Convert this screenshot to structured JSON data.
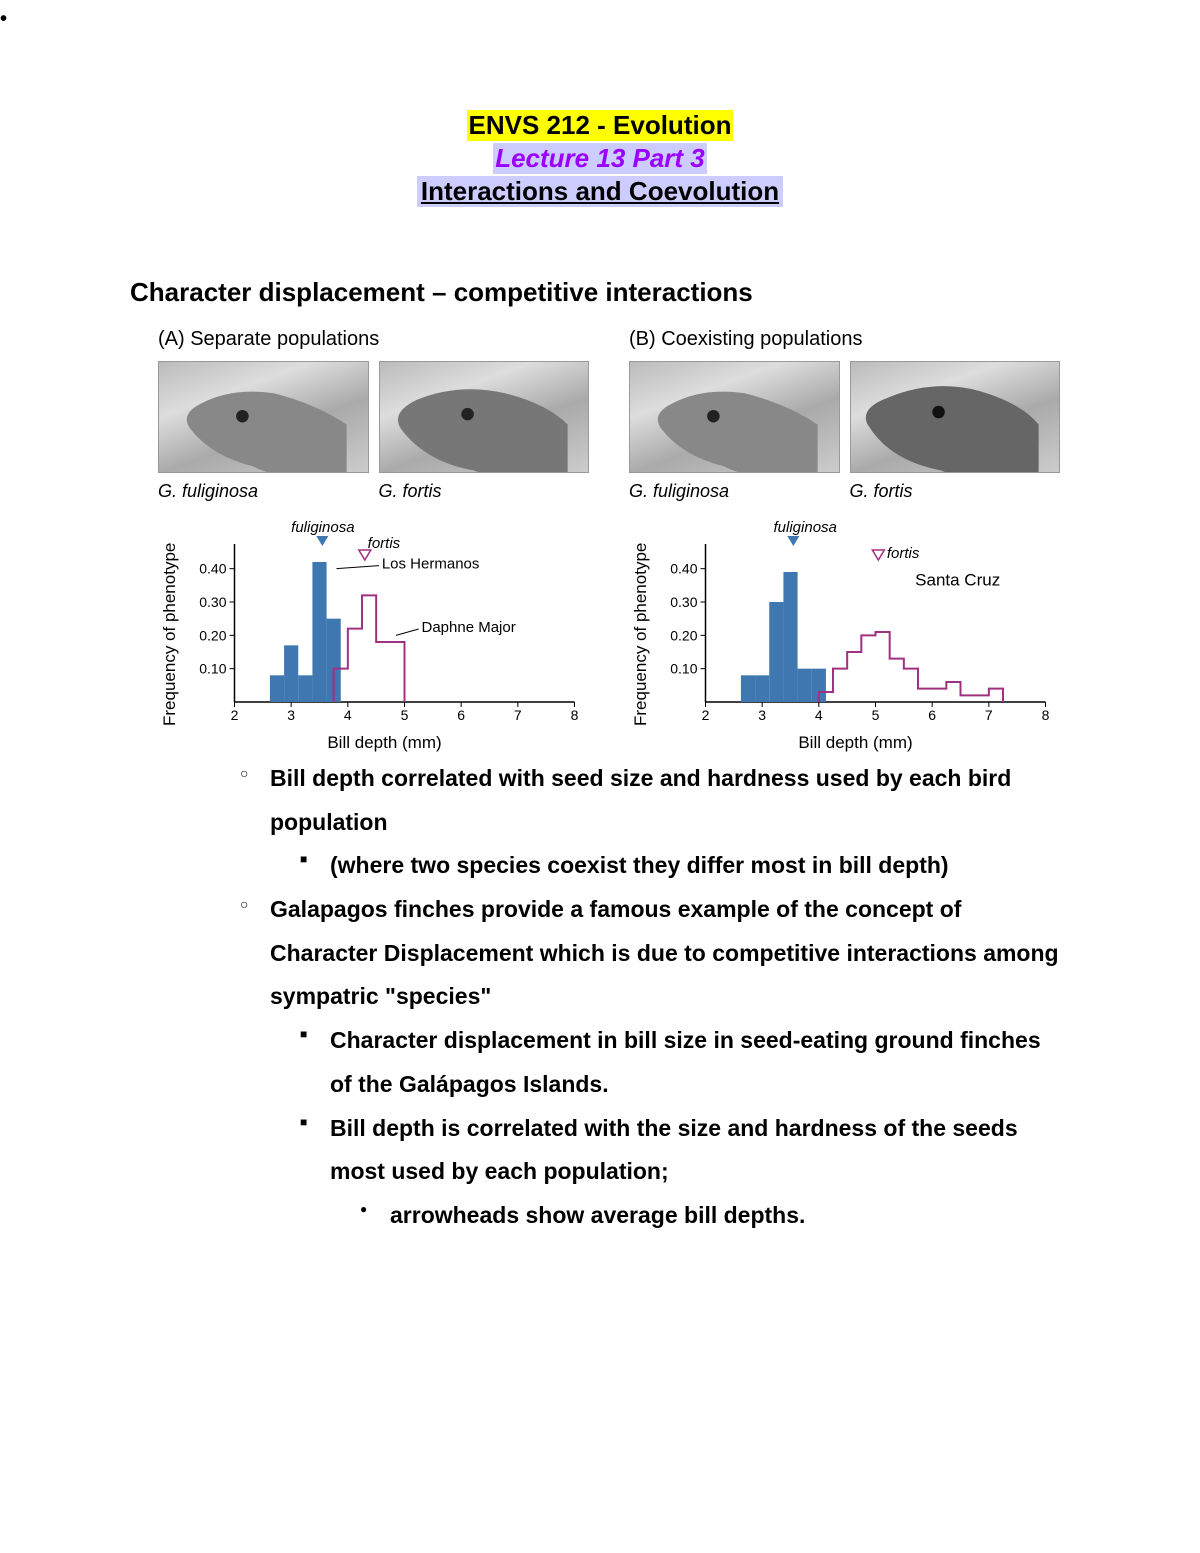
{
  "header": {
    "course": "ENVS 212 - Evolution",
    "lecture": "Lecture 13 Part 3",
    "subtitle": "Interactions and Coevolution",
    "colors": {
      "yellow": "#ffff00",
      "lavender": "#ccccff",
      "lecture_text": "#9900ff"
    }
  },
  "section_heading": "Character displacement – competitive interactions",
  "figure": {
    "panelA": {
      "title": "(A)  Separate populations",
      "species": [
        "G. fuliginosa",
        "G. fortis"
      ],
      "ylabel": "Frequency of phenotype",
      "xlabel": "Bill depth (mm)",
      "ylim": [
        0,
        0.45
      ],
      "yticks": [
        0.1,
        0.2,
        0.3,
        0.4
      ],
      "xlim": [
        2,
        8
      ],
      "xticks": [
        2,
        3,
        4,
        5,
        6,
        7,
        8
      ],
      "bar_color": "#3f77b0",
      "line_color": "#a03080",
      "axis_color": "#000000",
      "annotations": {
        "fuliginosa": "fuliginosa",
        "los_hermanos": "Los Hermanos",
        "fortis": "fortis",
        "daphne_major": "Daphne Major"
      },
      "fuliginosa_bars": [
        {
          "x": 2.75,
          "h": 0.08
        },
        {
          "x": 3.0,
          "h": 0.17
        },
        {
          "x": 3.25,
          "h": 0.08
        },
        {
          "x": 3.5,
          "h": 0.42
        },
        {
          "x": 3.75,
          "h": 0.25
        },
        {
          "x": 4.0,
          "h": 0.0
        }
      ],
      "fortis_line": [
        {
          "x": 3.75,
          "y": 0.0
        },
        {
          "x": 3.75,
          "y": 0.1
        },
        {
          "x": 4.0,
          "y": 0.1
        },
        {
          "x": 4.0,
          "y": 0.22
        },
        {
          "x": 4.25,
          "y": 0.22
        },
        {
          "x": 4.25,
          "y": 0.32
        },
        {
          "x": 4.5,
          "y": 0.32
        },
        {
          "x": 4.5,
          "y": 0.18
        },
        {
          "x": 4.75,
          "y": 0.18
        },
        {
          "x": 4.75,
          "y": 0.18
        },
        {
          "x": 5.0,
          "y": 0.18
        },
        {
          "x": 5.0,
          "y": 0.0
        }
      ],
      "marker_fuliginosa_x": 3.55,
      "marker_fortis_x": 4.3
    },
    "panelB": {
      "title": "(B)  Coexisting populations",
      "species": [
        "G. fuliginosa",
        "G. fortis"
      ],
      "ylabel": "Frequency of phenotype",
      "xlabel": "Bill depth (mm)",
      "ylim": [
        0,
        0.45
      ],
      "yticks": [
        0.1,
        0.2,
        0.3,
        0.4
      ],
      "xlim": [
        2,
        8
      ],
      "xticks": [
        2,
        3,
        4,
        5,
        6,
        7,
        8
      ],
      "bar_color": "#3f77b0",
      "line_color": "#a03080",
      "axis_color": "#000000",
      "annotations": {
        "fuliginosa": "fuliginosa",
        "santa_cruz": "Santa Cruz",
        "fortis": "fortis"
      },
      "fuliginosa_bars": [
        {
          "x": 2.75,
          "h": 0.08
        },
        {
          "x": 3.0,
          "h": 0.08
        },
        {
          "x": 3.25,
          "h": 0.3
        },
        {
          "x": 3.5,
          "h": 0.39
        },
        {
          "x": 3.75,
          "h": 0.1
        },
        {
          "x": 4.0,
          "h": 0.1
        }
      ],
      "fortis_line": [
        {
          "x": 4.0,
          "y": 0.0
        },
        {
          "x": 4.0,
          "y": 0.03
        },
        {
          "x": 4.25,
          "y": 0.03
        },
        {
          "x": 4.25,
          "y": 0.1
        },
        {
          "x": 4.5,
          "y": 0.1
        },
        {
          "x": 4.5,
          "y": 0.15
        },
        {
          "x": 4.75,
          "y": 0.15
        },
        {
          "x": 4.75,
          "y": 0.2
        },
        {
          "x": 5.0,
          "y": 0.2
        },
        {
          "x": 5.0,
          "y": 0.21
        },
        {
          "x": 5.25,
          "y": 0.21
        },
        {
          "x": 5.25,
          "y": 0.13
        },
        {
          "x": 5.5,
          "y": 0.13
        },
        {
          "x": 5.5,
          "y": 0.1
        },
        {
          "x": 5.75,
          "y": 0.1
        },
        {
          "x": 5.75,
          "y": 0.04
        },
        {
          "x": 6.25,
          "y": 0.04
        },
        {
          "x": 6.25,
          "y": 0.06
        },
        {
          "x": 6.5,
          "y": 0.06
        },
        {
          "x": 6.5,
          "y": 0.02
        },
        {
          "x": 7.0,
          "y": 0.02
        },
        {
          "x": 7.0,
          "y": 0.04
        },
        {
          "x": 7.25,
          "y": 0.04
        },
        {
          "x": 7.25,
          "y": 0.0
        }
      ],
      "marker_fuliginosa_x": 3.55,
      "marker_fortis_x": 5.05
    }
  },
  "bullets": {
    "b0": "",
    "b1": "Bill depth correlated with seed size and hardness used by each bird population",
    "b1a": "(where two species coexist they differ most in bill depth)",
    "b2": "Galapagos finches provide a famous example of the concept of Character Displacement which is due to competitive interactions among sympatric \"species\"",
    "b2a": "Character displacement in bill size in seed-eating ground finches of the Galápagos Islands.",
    "b2b": "Bill depth is correlated with the size and hardness of the seeds most used by each population;",
    "b2b1": "arrowheads show average bill depths."
  }
}
